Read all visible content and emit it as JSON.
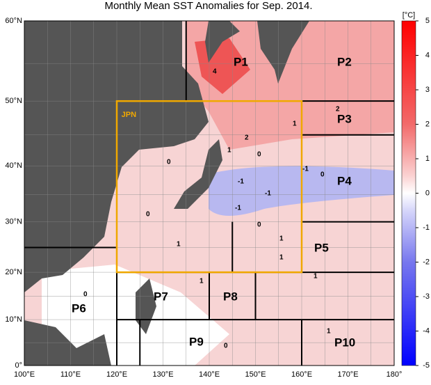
{
  "title": "Monthly Mean SST Anomalies for Sep. 2014.",
  "x_labels": [
    "100°E",
    "110°E",
    "120°E",
    "130°E",
    "140°E",
    "150°E",
    "160°E",
    "170°E",
    "180°"
  ],
  "y_labels": [
    "0°",
    "10°N",
    "20°N",
    "30°N",
    "40°N",
    "50°N",
    "60°N"
  ],
  "colorbar": {
    "unit": "[°C]",
    "ticks": [
      5,
      4,
      3,
      2,
      1,
      0,
      -1,
      -2,
      -3,
      -4,
      -5
    ]
  },
  "regions": [
    "P1",
    "P2",
    "P3",
    "P4",
    "P5",
    "P6",
    "P7",
    "P8",
    "P9",
    "P10"
  ],
  "box_label": "JPN",
  "contour_labels": [
    "4",
    "2",
    "2",
    "1",
    "1",
    "0",
    "0",
    "0",
    "0",
    "-1",
    "-1",
    "-1",
    "-1",
    "0",
    "1",
    "1",
    "1",
    "1",
    "1",
    "0",
    "0",
    "1"
  ]
}
